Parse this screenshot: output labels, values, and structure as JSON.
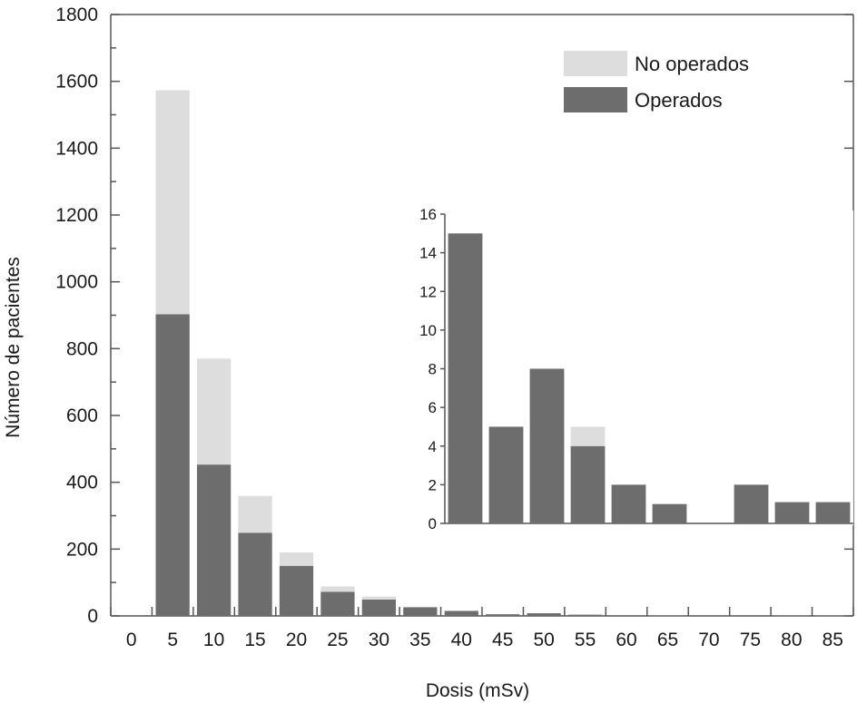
{
  "chart_data": [
    {
      "type": "bar",
      "stacked": true,
      "title": "",
      "xlabel": "Dosis (mSv)",
      "ylabel": "Número de pacientes",
      "ylim": [
        0,
        1800
      ],
      "yticks": [
        0,
        200,
        400,
        600,
        800,
        1000,
        1200,
        1400,
        1600,
        1800
      ],
      "categories": [
        "0",
        "5",
        "10",
        "15",
        "20",
        "25",
        "30",
        "35",
        "40",
        "45",
        "50",
        "55",
        "60",
        "65",
        "70",
        "75",
        "80",
        "85"
      ],
      "series": [
        {
          "name": "Operados",
          "color": "#6d6d6d",
          "values": [
            0,
            903,
            453,
            249,
            150,
            72,
            49,
            26,
            15,
            5,
            8,
            4,
            2,
            1,
            0,
            2,
            1,
            1
          ]
        },
        {
          "name": "No operados",
          "color": "#dddddd",
          "values": [
            0,
            670,
            317,
            110,
            40,
            16,
            9,
            0,
            0,
            0,
            0,
            1,
            0,
            0,
            0,
            0,
            0,
            0
          ]
        }
      ],
      "legend": {
        "position": "top-right",
        "entries": [
          "No operados",
          "Operados"
        ]
      },
      "grid": false
    },
    {
      "type": "bar",
      "stacked": true,
      "title": "",
      "xlabel": "",
      "ylabel": "",
      "ylim": [
        0,
        16
      ],
      "yticks": [
        0,
        2,
        4,
        6,
        8,
        10,
        12,
        14,
        16
      ],
      "categories": [
        "40",
        "45",
        "50",
        "55",
        "60",
        "65",
        "70",
        "75",
        "80",
        "85"
      ],
      "series": [
        {
          "name": "Operados",
          "color": "#6d6d6d",
          "values": [
            15,
            5,
            8,
            4,
            2,
            1,
            0,
            2,
            1.1,
            1.1
          ]
        },
        {
          "name": "No operados",
          "color": "#dddddd",
          "values": [
            0,
            0,
            0,
            1,
            0,
            0,
            0,
            0,
            0,
            0
          ]
        }
      ],
      "grid": false
    }
  ]
}
